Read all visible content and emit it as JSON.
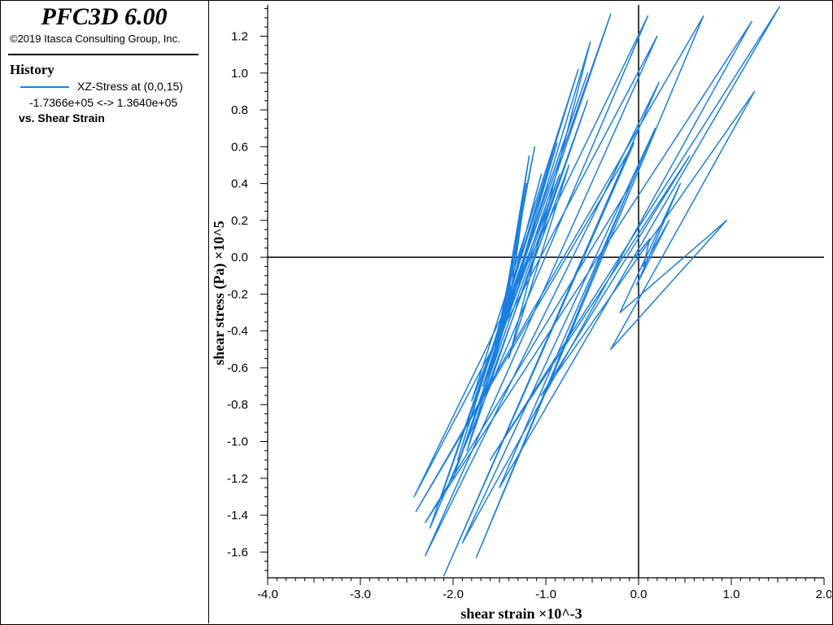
{
  "app": {
    "title": "PFC3D 6.00",
    "copyright": "©2019 Itasca Consulting Group, Inc."
  },
  "legend": {
    "heading": "History",
    "series_name": "XZ-Stress at (0,0,15)",
    "range_text": "-1.7366e+05 <->  1.3640e+05",
    "vs_text": "vs. Shear Strain"
  },
  "colors": {
    "series": "#1b7fe0",
    "axis": "#000000"
  },
  "chart_data": {
    "type": "line",
    "xlabel": "shear strain ×10^-3",
    "ylabel": "shear stress (Pa) ×10^5",
    "xlim": [
      -4.0,
      2.0
    ],
    "ylim": [
      -1.74,
      1.37
    ],
    "x_ticks": [
      "-4.0",
      "-3.0",
      "-2.0",
      "-1.0",
      "0.0",
      "1.0",
      "2.0"
    ],
    "x_tick_values": [
      -4.0,
      -3.0,
      -2.0,
      -1.0,
      0.0,
      1.0,
      2.0
    ],
    "y_ticks": [
      "-1.6",
      "-1.4",
      "-1.2",
      "-1.0",
      "-0.8",
      "-0.6",
      "-0.4",
      "-0.2",
      "0.0",
      "0.2",
      "0.4",
      "0.6",
      "0.8",
      "1.0",
      "1.2"
    ],
    "y_tick_values": [
      -1.6,
      -1.4,
      -1.2,
      -1.0,
      -0.8,
      -0.6,
      -0.4,
      -0.2,
      0.0,
      0.2,
      0.4,
      0.6,
      0.8,
      1.0,
      1.2
    ],
    "grid": false,
    "zero_lines": true,
    "series": [
      {
        "x": [
          -1.32,
          -1.25,
          -1.38,
          -1.21,
          -1.45,
          -1.18,
          -1.5,
          -1.12,
          -1.55,
          -1.05,
          -1.6,
          -0.98,
          -1.68,
          -0.85,
          -1.8,
          -0.65,
          -1.95,
          -0.88,
          -1.7,
          -0.75,
          -1.4,
          -0.52,
          -1.85,
          -0.55,
          -2.0,
          -0.3,
          -2.15,
          -0.55,
          -2.25,
          0.1,
          -2.42,
          0.2,
          -2.3,
          0.22,
          -2.1,
          -0.05,
          -2.4,
          0.7,
          -1.75,
          -0.08,
          -2.3,
          1.22,
          -1.9,
          0.18,
          -1.5,
          1.52,
          -1.6,
          0.55,
          -1.05,
          1.25,
          -0.3,
          0.95,
          -0.2,
          0.45,
          -0.02,
          0.33,
          0.05,
          0.12,
          -0.04
        ],
        "y": [
          0.0,
          0.25,
          -0.2,
          0.4,
          -0.35,
          0.55,
          -0.42,
          0.6,
          -0.5,
          0.45,
          -0.6,
          0.4,
          -0.7,
          0.45,
          -0.78,
          1.02,
          -1.1,
          0.62,
          -0.8,
          0.5,
          -0.55,
          1.17,
          -1.05,
          0.85,
          -1.2,
          1.32,
          -1.33,
          1.0,
          -1.47,
          1.31,
          -1.3,
          1.2,
          -1.62,
          0.95,
          -1.73,
          0.62,
          -1.38,
          1.31,
          -1.63,
          0.4,
          -1.44,
          1.28,
          -1.55,
          0.7,
          -1.25,
          1.36,
          -1.1,
          0.55,
          -0.75,
          0.9,
          -0.5,
          0.2,
          -0.3,
          0.4,
          -0.15,
          0.2,
          -0.05,
          0.1,
          0.0
        ]
      }
    ]
  }
}
